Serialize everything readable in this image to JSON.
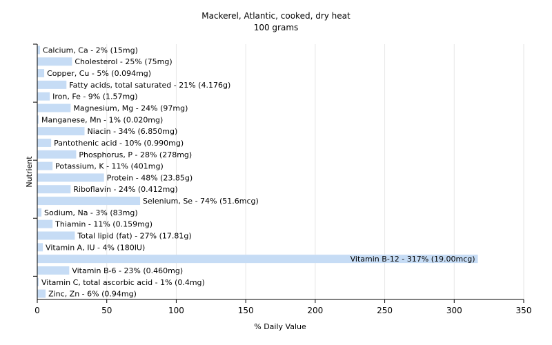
{
  "chart_data": {
    "type": "bar",
    "orientation": "horizontal",
    "title": "Mackerel, Atlantic, cooked, dry heat",
    "subtitle": "100 grams",
    "xlabel": "% Daily Value",
    "ylabel": "Nutrient",
    "xlim": [
      0,
      350
    ],
    "xticks": [
      0,
      50,
      100,
      150,
      200,
      250,
      300,
      350
    ],
    "grid": "vertical",
    "bar_color": "#c6dcf5",
    "categories": [
      "Calcium, Ca",
      "Cholesterol",
      "Copper, Cu",
      "Fatty acids, total saturated",
      "Iron, Fe",
      "Magnesium, Mg",
      "Manganese, Mn",
      "Niacin",
      "Pantothenic acid",
      "Phosphorus, P",
      "Potassium, K",
      "Protein",
      "Riboflavin",
      "Selenium, Se",
      "Sodium, Na",
      "Thiamin",
      "Total lipid (fat)",
      "Vitamin A, IU",
      "Vitamin B-12",
      "Vitamin B-6",
      "Vitamin C, total ascorbic acid",
      "Zinc, Zn"
    ],
    "values": [
      2,
      25,
      5,
      21,
      9,
      24,
      1,
      34,
      10,
      28,
      11,
      48,
      24,
      74,
      3,
      11,
      27,
      4,
      317,
      23,
      1,
      6
    ],
    "labels": [
      "Calcium, Ca - 2% (15mg)",
      "Cholesterol - 25% (75mg)",
      "Copper, Cu - 5% (0.094mg)",
      "Fatty acids, total saturated - 21% (4.176g)",
      "Iron, Fe - 9% (1.57mg)",
      "Magnesium, Mg - 24% (97mg)",
      "Manganese, Mn - 1% (0.020mg)",
      "Niacin - 34% (6.850mg)",
      "Pantothenic acid - 10% (0.990mg)",
      "Phosphorus, P - 28% (278mg)",
      "Potassium, K - 11% (401mg)",
      "Protein - 48% (23.85g)",
      "Riboflavin - 24% (0.412mg)",
      "Selenium, Se - 74% (51.6mcg)",
      "Sodium, Na - 3% (83mg)",
      "Thiamin - 11% (0.159mg)",
      "Total lipid (fat) - 27% (17.81g)",
      "Vitamin A, IU - 4% (180IU)",
      "Vitamin B-12 - 317% (19.00mcg)",
      "Vitamin B-6 - 23% (0.460mg)",
      "Vitamin C, total ascorbic acid - 1% (0.4mg)",
      "Zinc, Zn - 6% (0.94mg)"
    ]
  }
}
